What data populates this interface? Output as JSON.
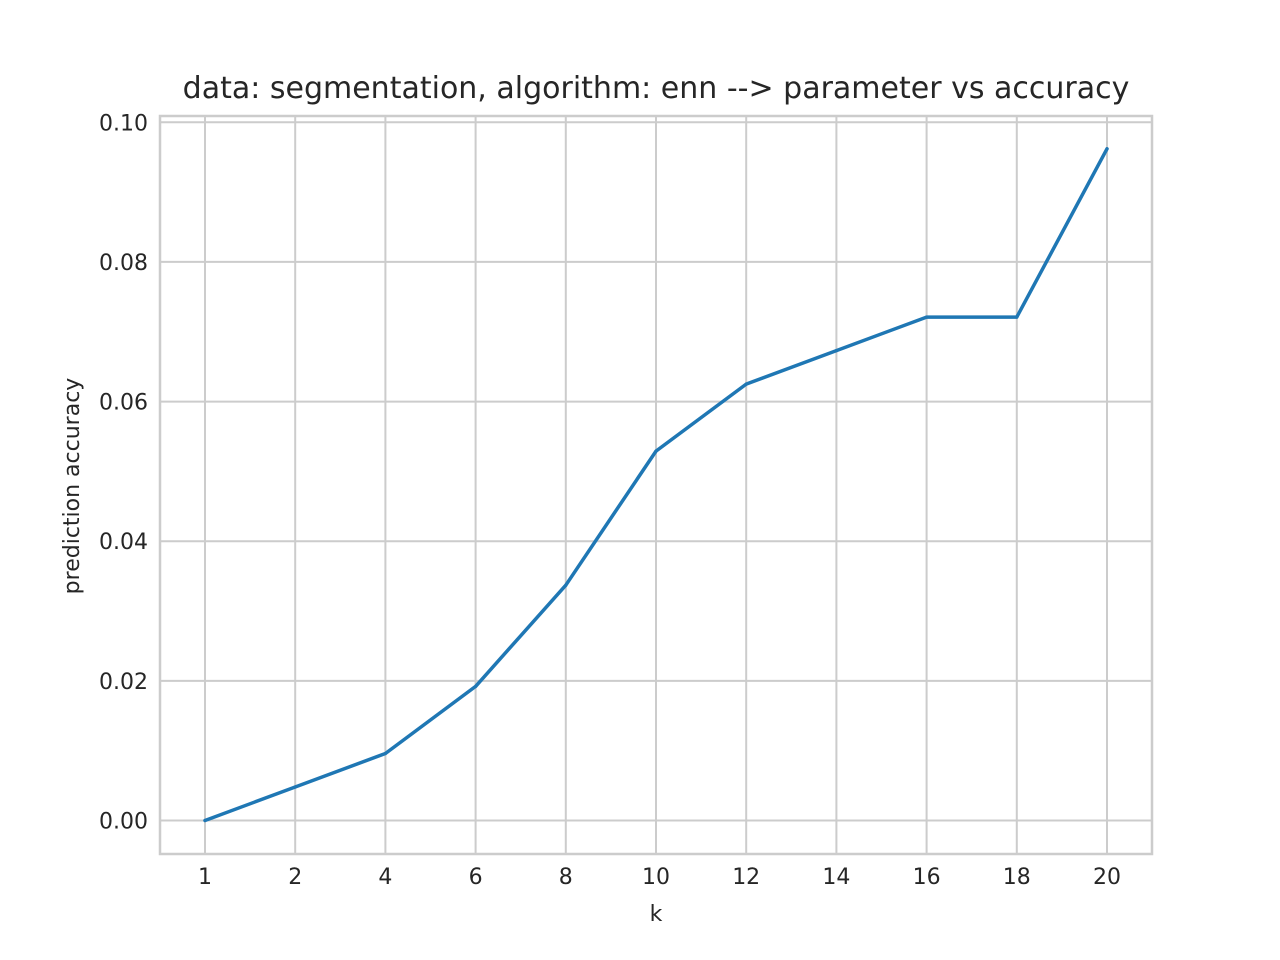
{
  "chart_data": {
    "type": "line",
    "title": "data: segmentation, algorithm: enn --> parameter vs accuracy",
    "xlabel": "k",
    "ylabel": "prediction accuracy",
    "x_tick_labels": [
      "1",
      "2",
      "4",
      "6",
      "8",
      "10",
      "12",
      "14",
      "16",
      "18",
      "20"
    ],
    "y_ticks": [
      0.0,
      0.02,
      0.04,
      0.06,
      0.08,
      0.1
    ],
    "y_tick_labels": [
      "0.00",
      "0.02",
      "0.04",
      "0.06",
      "0.08",
      "0.10"
    ],
    "ylim": [
      -0.0048,
      0.1009
    ],
    "grid": true,
    "series": [
      {
        "color": "#1f77b4",
        "values": [
          0.0,
          0.0048,
          0.0096,
          0.0192,
          0.0337,
          0.0529,
          0.0625,
          0.0673,
          0.0721,
          0.0721,
          0.0962
        ]
      }
    ]
  }
}
